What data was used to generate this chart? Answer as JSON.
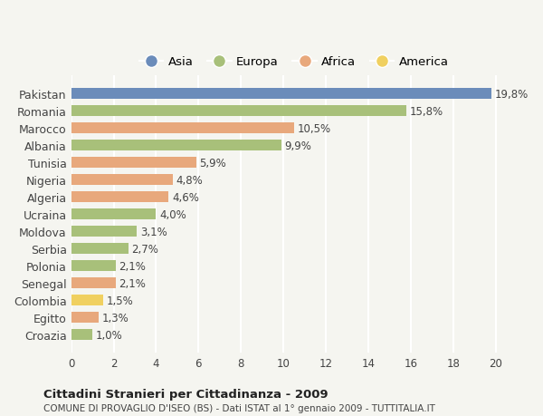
{
  "countries": [
    "Pakistan",
    "Romania",
    "Marocco",
    "Albania",
    "Tunisia",
    "Nigeria",
    "Algeria",
    "Ucraina",
    "Moldova",
    "Serbia",
    "Polonia",
    "Senegal",
    "Colombia",
    "Egitto",
    "Croazia"
  ],
  "values": [
    19.8,
    15.8,
    10.5,
    9.9,
    5.9,
    4.8,
    4.6,
    4.0,
    3.1,
    2.7,
    2.1,
    2.1,
    1.5,
    1.3,
    1.0
  ],
  "labels": [
    "19,8%",
    "15,8%",
    "10,5%",
    "9,9%",
    "5,9%",
    "4,8%",
    "4,6%",
    "4,0%",
    "3,1%",
    "2,7%",
    "2,1%",
    "2,1%",
    "1,5%",
    "1,3%",
    "1,0%"
  ],
  "continents": [
    "Asia",
    "Europa",
    "Africa",
    "Europa",
    "Africa",
    "Africa",
    "Africa",
    "Europa",
    "Europa",
    "Europa",
    "Europa",
    "Africa",
    "America",
    "Africa",
    "Europa"
  ],
  "colors": {
    "Asia": "#6b8cba",
    "Europa": "#a8c07a",
    "Africa": "#e8a87c",
    "America": "#f0d060"
  },
  "legend_order": [
    "Asia",
    "Europa",
    "Africa",
    "America"
  ],
  "xlim": [
    0,
    21
  ],
  "xticks": [
    0,
    2,
    4,
    6,
    8,
    10,
    12,
    14,
    16,
    18,
    20
  ],
  "title": "Cittadini Stranieri per Cittadinanza - 2009",
  "subtitle": "COMUNE DI PROVAGLIO D'ISEO (BS) - Dati ISTAT al 1° gennaio 2009 - TUTTITALIA.IT",
  "background_color": "#f5f5f0",
  "grid_color": "#ffffff",
  "bar_height": 0.65
}
